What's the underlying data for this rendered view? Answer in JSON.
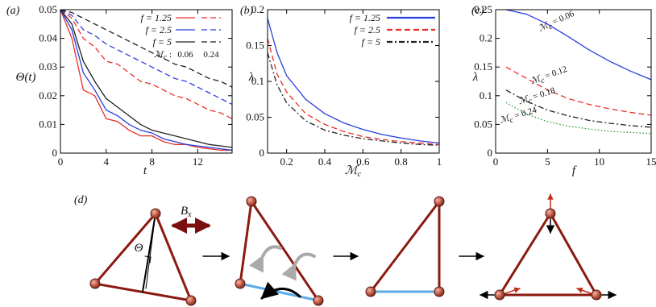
{
  "chart_data": [
    {
      "type": "line",
      "panel": "(a)",
      "ylabel": "Θ(t)",
      "xlabel": "t",
      "xlim": [
        0,
        15
      ],
      "ylim": [
        0,
        0.05
      ],
      "xticks": [
        0,
        4,
        8,
        12
      ],
      "yticks": [
        0,
        0.01,
        0.02,
        0.03,
        0.04,
        0.05
      ],
      "x": [
        0,
        1,
        2,
        3,
        4,
        5,
        6,
        7,
        8,
        9,
        10,
        11,
        12,
        13,
        14,
        15
      ],
      "series": [
        {
          "name": "f = 1.25",
          "color": "#e8302a",
          "dash": "solid",
          "values": [
            0.05,
            0.04,
            0.022,
            0.02,
            0.012,
            0.011,
            0.008,
            0.006,
            0.006,
            0.004,
            0.003,
            0.003,
            0.002,
            0.0015,
            0.001,
            0.001
          ],
          "dashed_values": [
            0.05,
            0.047,
            0.04,
            0.037,
            0.032,
            0.031,
            0.028,
            0.025,
            0.024,
            0.022,
            0.02,
            0.019,
            0.017,
            0.015,
            0.014,
            0.012
          ]
        },
        {
          "name": "f = 2.5",
          "color": "#2b3fe0",
          "dash": "solid",
          "values": [
            0.05,
            0.043,
            0.028,
            0.022,
            0.015,
            0.013,
            0.01,
            0.008,
            0.007,
            0.005,
            0.004,
            0.003,
            0.0025,
            0.002,
            0.0015,
            0.001
          ],
          "dashed_values": [
            0.05,
            0.048,
            0.043,
            0.041,
            0.038,
            0.036,
            0.034,
            0.032,
            0.03,
            0.028,
            0.026,
            0.025,
            0.023,
            0.021,
            0.019,
            0.017
          ]
        },
        {
          "name": "f = 5",
          "color": "#222222",
          "dash": "solid",
          "values": [
            0.05,
            0.045,
            0.032,
            0.025,
            0.019,
            0.016,
            0.013,
            0.01,
            0.008,
            0.007,
            0.006,
            0.005,
            0.004,
            0.003,
            0.0025,
            0.002
          ],
          "dashed_values": [
            0.05,
            0.049,
            0.047,
            0.045,
            0.043,
            0.041,
            0.039,
            0.037,
            0.035,
            0.033,
            0.031,
            0.03,
            0.028,
            0.026,
            0.025,
            0.023
          ]
        }
      ],
      "legend_note": {
        "symbol": "ℳ",
        "sub": "c",
        "text": " :"
      },
      "legend_columns": [
        "0.06",
        "0.24"
      ]
    },
    {
      "type": "line",
      "panel": "(b)",
      "ylabel": "λ",
      "xlabel": {
        "symbol": "ℳ",
        "sub": "c"
      },
      "xlim": [
        0.1,
        1
      ],
      "ylim": [
        0,
        0.2
      ],
      "xticks": [
        0.2,
        0.4,
        0.6,
        0.8,
        1
      ],
      "yticks": [
        0,
        0.05,
        0.1,
        0.15,
        0.2
      ],
      "x": [
        0.1,
        0.15,
        0.2,
        0.3,
        0.4,
        0.5,
        0.6,
        0.7,
        0.8,
        0.9,
        1
      ],
      "series": [
        {
          "name": "f = 1.25",
          "color": "#2b3fe0",
          "dash": "solid",
          "values": [
            0.188,
            0.14,
            0.108,
            0.075,
            0.055,
            0.042,
            0.033,
            0.026,
            0.021,
            0.017,
            0.014
          ]
        },
        {
          "name": "f = 2.5",
          "color": "#e8302a",
          "dash": "dashed",
          "values": [
            0.16,
            0.11,
            0.085,
            0.055,
            0.04,
            0.03,
            0.023,
            0.019,
            0.016,
            0.014,
            0.012
          ]
        },
        {
          "name": "f = 5",
          "color": "#222222",
          "dash": "dashdot",
          "values": [
            0.14,
            0.095,
            0.07,
            0.045,
            0.032,
            0.025,
            0.02,
            0.017,
            0.014,
            0.012,
            0.011
          ]
        }
      ]
    },
    {
      "type": "line",
      "panel": "(c)",
      "ylabel": "λ",
      "xlabel": "f",
      "xlim": [
        0,
        15
      ],
      "ylim": [
        0,
        0.25
      ],
      "xticks": [
        0,
        5,
        10,
        15
      ],
      "yticks": [
        0,
        0.05,
        0.1,
        0.15,
        0.2,
        0.25
      ],
      "x": [
        1,
        3,
        5,
        7,
        9,
        11,
        13,
        15
      ],
      "series": [
        {
          "label": {
            "symbol": "ℳ",
            "sub": "c",
            "text": " = 0.06"
          },
          "color": "#2b3fe0",
          "dash": "solid",
          "values": [
            0.25,
            0.242,
            0.225,
            0.203,
            0.18,
            0.16,
            0.143,
            0.128
          ]
        },
        {
          "label": {
            "symbol": "ℳ",
            "sub": "c",
            "text": " = 0.12"
          },
          "color": "#e8302a",
          "dash": "dashed",
          "values": [
            0.15,
            0.13,
            0.11,
            0.095,
            0.085,
            0.077,
            0.071,
            0.066
          ]
        },
        {
          "label": {
            "symbol": "ℳ",
            "sub": "c",
            "text": " = 0.18"
          },
          "color": "#222222",
          "dash": "dashdot",
          "values": [
            0.11,
            0.09,
            0.075,
            0.065,
            0.057,
            0.052,
            0.048,
            0.045
          ]
        },
        {
          "label": {
            "symbol": "ℳ",
            "sub": "c",
            "text": " = 0.24"
          },
          "color": "#1f9a2a",
          "dash": "dotted",
          "values": [
            0.088,
            0.068,
            0.055,
            0.047,
            0.042,
            0.038,
            0.036,
            0.034
          ]
        }
      ]
    }
  ],
  "diagram": {
    "label": "(d)",
    "field": {
      "symbol": "B",
      "sub": "x"
    },
    "angle": "Θ"
  }
}
